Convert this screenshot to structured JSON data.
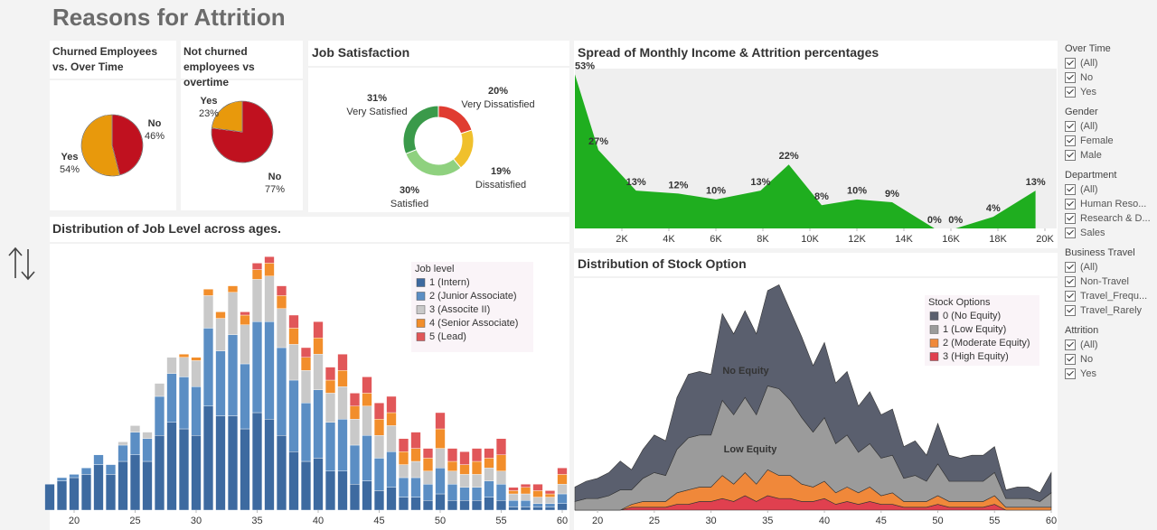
{
  "title": "Reasons for Attrition",
  "chart_data": [
    {
      "type": "pie",
      "title": "Churned Employees vs. Over Time",
      "categories": [
        "No",
        "Yes"
      ],
      "values": [
        46,
        54
      ],
      "value_labels": [
        "46%",
        "54%"
      ],
      "colors": [
        "#c0111f",
        "#e8990c"
      ]
    },
    {
      "type": "pie",
      "title": "Not churned employees vs overtime",
      "categories": [
        "No",
        "Yes"
      ],
      "values": [
        77,
        23
      ],
      "value_labels": [
        "77%",
        "23%"
      ],
      "colors": [
        "#c0111f",
        "#e8990c"
      ]
    },
    {
      "type": "donut",
      "title": "Job Satisfaction",
      "categories": [
        "Very Dissatisfied",
        "Dissatisfied",
        "Satisfied",
        "Very Satisfied"
      ],
      "values": [
        20,
        19,
        30,
        31
      ],
      "value_labels": [
        "20%",
        "19%",
        "30%",
        "31%"
      ],
      "colors": [
        "#e03c31",
        "#f0c02c",
        "#8fd17f",
        "#3a9a4a"
      ]
    },
    {
      "type": "area",
      "title": "Spread of Monthly Income & Attrition percentages",
      "x": [
        0,
        1000,
        2600,
        4400,
        6000,
        7900,
        9100,
        10500,
        12000,
        13500,
        15300,
        16200,
        17800,
        19600
      ],
      "values": [
        53,
        27,
        13,
        12,
        10,
        13,
        22,
        8,
        10,
        9,
        0,
        0,
        4,
        13
      ],
      "value_labels": [
        "53%",
        "27%",
        "13%",
        "12%",
        "10%",
        "13%",
        "22%",
        "8%",
        "10%",
        "9%",
        "0%",
        "0%",
        "4%",
        "13%"
      ],
      "color": "#1fae1f",
      "xlim": [
        0,
        20500
      ],
      "ylim": [
        0,
        55
      ],
      "xticks": [
        {
          "value": 2000,
          "label": "2K"
        },
        {
          "value": 4000,
          "label": "4K"
        },
        {
          "value": 6000,
          "label": "6K"
        },
        {
          "value": 8000,
          "label": "8K"
        },
        {
          "value": 10000,
          "label": "10K"
        },
        {
          "value": 12000,
          "label": "12K"
        },
        {
          "value": 14000,
          "label": "14K"
        },
        {
          "value": 16000,
          "label": "16K"
        },
        {
          "value": 18000,
          "label": "18K"
        },
        {
          "value": 20000,
          "label": "20K"
        }
      ]
    },
    {
      "type": "stacked_bar",
      "title": "Distribution of Job Level across ages.",
      "legend_title": "Job level",
      "x": [
        18,
        19,
        20,
        21,
        22,
        23,
        24,
        25,
        26,
        27,
        28,
        29,
        30,
        31,
        32,
        33,
        34,
        35,
        36,
        37,
        38,
        39,
        40,
        41,
        42,
        43,
        44,
        45,
        46,
        47,
        48,
        49,
        50,
        51,
        52,
        53,
        54,
        55,
        56,
        57,
        58,
        59,
        60
      ],
      "xlim": [
        17.5,
        60.5
      ],
      "ylim": [
        0,
        80
      ],
      "xticks": [
        20,
        25,
        30,
        35,
        40,
        45,
        50,
        55,
        60
      ],
      "series": [
        {
          "name": "1 (Intern)",
          "color": "#3d6aa0",
          "values": [
            8,
            9,
            10,
            11,
            14,
            11,
            15,
            17,
            15,
            23,
            27,
            25,
            23,
            32,
            29,
            29,
            25,
            30,
            28,
            23,
            18,
            15,
            16,
            12,
            12,
            8,
            9,
            6,
            7,
            4,
            4,
            3,
            5,
            3,
            3,
            3,
            4,
            3,
            1,
            1,
            1,
            1,
            2
          ]
        },
        {
          "name": "2 (Junior Associate)",
          "color": "#5b8ec4",
          "values": [
            0,
            1,
            1,
            2,
            3,
            3,
            5,
            7,
            7,
            12,
            15,
            16,
            15,
            24,
            20,
            25,
            20,
            28,
            30,
            27,
            22,
            18,
            21,
            15,
            16,
            12,
            14,
            10,
            11,
            6,
            6,
            5,
            8,
            5,
            4,
            4,
            5,
            5,
            2,
            2,
            1,
            1,
            3
          ]
        },
        {
          "name": "3 (Associte II)",
          "color": "#c9c9c9",
          "values": [
            0,
            0,
            0,
            0,
            0,
            0,
            1,
            2,
            2,
            4,
            5,
            6,
            8,
            10,
            10,
            13,
            12,
            13,
            14,
            12,
            11,
            10,
            11,
            9,
            10,
            8,
            9,
            7,
            8,
            4,
            5,
            4,
            6,
            4,
            4,
            4,
            4,
            4,
            2,
            2,
            2,
            2,
            3
          ]
        },
        {
          "name": "4 (Senior Associate)",
          "color": "#f28e2b",
          "values": [
            0,
            0,
            0,
            0,
            0,
            0,
            0,
            0,
            0,
            0,
            0,
            1,
            1,
            2,
            2,
            2,
            3,
            3,
            4,
            4,
            5,
            4,
            5,
            4,
            5,
            4,
            4,
            5,
            4,
            4,
            4,
            4,
            6,
            3,
            3,
            4,
            3,
            5,
            1,
            2,
            2,
            1,
            3
          ]
        },
        {
          "name": "5 (Lead)",
          "color": "#e15759",
          "values": [
            0,
            0,
            0,
            0,
            0,
            0,
            0,
            0,
            0,
            0,
            0,
            0,
            0,
            0,
            0,
            0,
            1,
            2,
            2,
            3,
            4,
            3,
            5,
            4,
            5,
            4,
            5,
            5,
            5,
            4,
            5,
            3,
            5,
            4,
            4,
            4,
            3,
            5,
            1,
            1,
            2,
            1,
            2
          ]
        }
      ]
    },
    {
      "type": "stacked_area",
      "title": "Distribution of Stock Option",
      "legend_title": "Stock Options",
      "annotations": [
        "No Equity",
        "Low Equity"
      ],
      "x": [
        18,
        19,
        20,
        21,
        22,
        23,
        24,
        25,
        26,
        27,
        28,
        29,
        30,
        31,
        32,
        33,
        34,
        35,
        36,
        37,
        38,
        39,
        40,
        41,
        42,
        43,
        44,
        45,
        46,
        47,
        48,
        49,
        50,
        51,
        52,
        53,
        54,
        55,
        56,
        57,
        58,
        59,
        60
      ],
      "xlim": [
        18,
        60
      ],
      "ylim": [
        0,
        90
      ],
      "xticks": [
        20,
        25,
        30,
        35,
        40,
        45,
        50,
        55,
        60
      ],
      "series": [
        {
          "name": "3 (High Equity)",
          "color": "#e0404f",
          "values": [
            0,
            0,
            0,
            0,
            0,
            1,
            1,
            1,
            1,
            2,
            2,
            3,
            3,
            4,
            3,
            5,
            3,
            5,
            4,
            4,
            3,
            3,
            4,
            2,
            3,
            2,
            3,
            2,
            2,
            1,
            1,
            1,
            2,
            1,
            1,
            1,
            1,
            2,
            0,
            0,
            0,
            0,
            0
          ]
        },
        {
          "name": "2 (Moderate Equity)",
          "color": "#f0883a",
          "values": [
            0,
            0,
            0,
            0,
            0,
            1,
            2,
            2,
            2,
            4,
            5,
            5,
            5,
            8,
            6,
            8,
            6,
            9,
            8,
            8,
            6,
            5,
            6,
            4,
            5,
            4,
            5,
            3,
            4,
            2,
            2,
            2,
            3,
            2,
            2,
            2,
            2,
            3,
            1,
            1,
            1,
            1,
            1
          ]
        },
        {
          "name": "1 (Low Equity)",
          "color": "#9b9b9b",
          "values": [
            3,
            4,
            4,
            5,
            7,
            5,
            8,
            10,
            9,
            15,
            18,
            18,
            18,
            26,
            24,
            26,
            24,
            29,
            30,
            26,
            23,
            19,
            22,
            17,
            18,
            14,
            15,
            13,
            13,
            8,
            9,
            7,
            11,
            7,
            7,
            7,
            7,
            8,
            3,
            3,
            3,
            2,
            5
          ]
        },
        {
          "name": "0 (No Equity)",
          "color": "#5a5f6e",
          "values": [
            5,
            6,
            7,
            8,
            10,
            7,
            10,
            13,
            12,
            18,
            22,
            22,
            21,
            30,
            28,
            30,
            28,
            33,
            36,
            31,
            28,
            23,
            26,
            21,
            22,
            16,
            18,
            15,
            16,
            11,
            12,
            9,
            14,
            9,
            8,
            9,
            9,
            9,
            3,
            4,
            4,
            3,
            7
          ]
        }
      ]
    }
  ],
  "filters": [
    {
      "title": "Over Time",
      "options": [
        "(All)",
        "No",
        "Yes"
      ]
    },
    {
      "title": "Gender",
      "options": [
        "(All)",
        "Female",
        "Male"
      ]
    },
    {
      "title": "Department",
      "options": [
        "(All)",
        "Human Reso...",
        "Research & D...",
        "Sales"
      ]
    },
    {
      "title": "Business Travel",
      "options": [
        "(All)",
        "Non-Travel",
        "Travel_Frequ...",
        "Travel_Rarely"
      ]
    },
    {
      "title": "Attrition",
      "options": [
        "(All)",
        "No",
        "Yes"
      ]
    }
  ]
}
